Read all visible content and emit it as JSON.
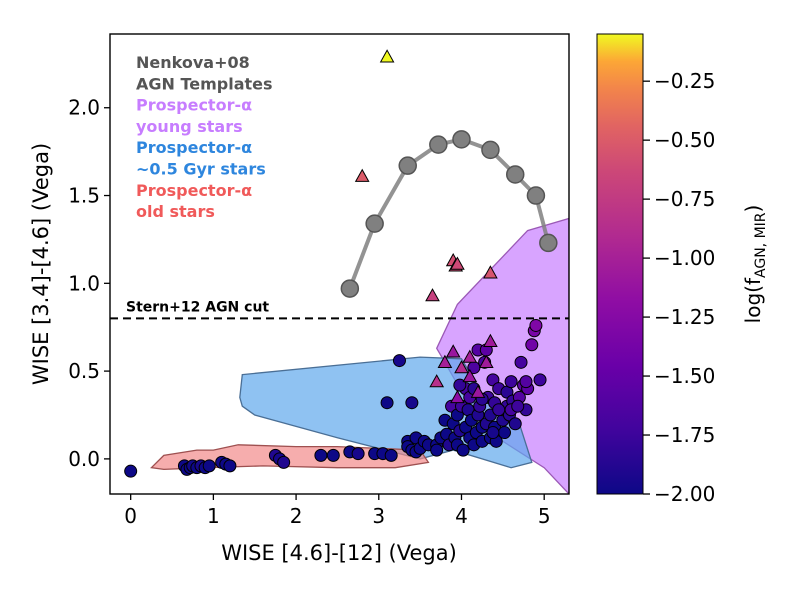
{
  "chart_data": {
    "type": "scatter",
    "xlabel": "WISE [4.6]-[12] (Vega)",
    "ylabel": "WISE [3.4]-[4.6] (Vega)",
    "xlim": [
      -0.25,
      5.3
    ],
    "ylim": [
      -0.2,
      2.42
    ],
    "xticks": [
      0,
      1,
      2,
      3,
      4,
      5
    ],
    "yticks": [
      0.0,
      0.5,
      1.0,
      1.5,
      2.0
    ],
    "xtick_labels": [
      "0",
      "1",
      "2",
      "3",
      "4",
      "5"
    ],
    "ytick_labels": [
      "0.0",
      "0.5",
      "1.0",
      "1.5",
      "2.0"
    ],
    "legend_lines": [
      {
        "text": "Nenkova+08",
        "color": "#555555"
      },
      {
        "text": "AGN Templates",
        "color": "#555555"
      },
      {
        "text": "Prospector-α",
        "color": "#c77dff"
      },
      {
        "text": "young stars",
        "color": "#c77dff"
      },
      {
        "text": "Prospector-α",
        "color": "#2e86de"
      },
      {
        "text": "~0.5 Gyr stars",
        "color": "#2e86de"
      },
      {
        "text": "Prospector-α",
        "color": "#f05a5a"
      },
      {
        "text": "old stars",
        "color": "#f05a5a"
      }
    ],
    "stern_cut": {
      "y": 0.8,
      "label": "Stern+12 AGN cut"
    },
    "colorbar": {
      "label": "log(f",
      "label_sub": "AGN, MIR",
      "label_end": ")",
      "range": [
        -2.0,
        -0.05
      ],
      "ticks": [
        -0.25,
        -0.5,
        -0.75,
        -1.0,
        -1.25,
        -1.5,
        -1.75,
        -2.0
      ],
      "tick_labels": [
        "−0.25",
        "−0.50",
        "−0.75",
        "−1.00",
        "−1.25",
        "−1.50",
        "−1.75",
        "−2.00"
      ]
    },
    "agn_templates": {
      "color": "#808080",
      "points": [
        [
          2.65,
          0.97
        ],
        [
          2.95,
          1.34
        ],
        [
          3.35,
          1.67
        ],
        [
          3.72,
          1.79
        ],
        [
          4.0,
          1.82
        ],
        [
          4.35,
          1.76
        ],
        [
          4.65,
          1.62
        ],
        [
          4.9,
          1.5
        ],
        [
          5.05,
          1.23
        ]
      ]
    },
    "regions": [
      {
        "name": "young stars",
        "fill": "#c77dff",
        "edge": "#9b59b6",
        "points": [
          [
            3.7,
            0.63
          ],
          [
            3.95,
            0.88
          ],
          [
            4.8,
            1.3
          ],
          [
            5.3,
            1.37
          ],
          [
            5.3,
            -0.2
          ],
          [
            5.0,
            -0.05
          ],
          [
            4.5,
            0.1
          ],
          [
            4.1,
            0.3
          ],
          [
            3.8,
            0.55
          ]
        ]
      },
      {
        "name": "~0.5 Gyr stars",
        "fill": "#5fa8ed",
        "edge": "#4a6f96",
        "points": [
          [
            1.35,
            0.48
          ],
          [
            3.5,
            0.58
          ],
          [
            4.0,
            0.57
          ],
          [
            4.25,
            0.37
          ],
          [
            4.7,
            0.2
          ],
          [
            4.85,
            -0.02
          ],
          [
            4.6,
            -0.05
          ],
          [
            3.9,
            0.05
          ],
          [
            3.5,
            0.0
          ],
          [
            2.5,
            0.12
          ],
          [
            1.5,
            0.25
          ],
          [
            1.35,
            0.3
          ],
          [
            1.32,
            0.35
          ]
        ]
      },
      {
        "name": "old stars",
        "fill": "#f28a8a",
        "edge": "#9e5050",
        "points": [
          [
            0.25,
            -0.05
          ],
          [
            0.4,
            0.02
          ],
          [
            0.8,
            0.05
          ],
          [
            1.0,
            0.05
          ],
          [
            1.3,
            0.08
          ],
          [
            2.0,
            0.07
          ],
          [
            2.5,
            0.07
          ],
          [
            3.5,
            0.05
          ],
          [
            3.6,
            -0.02
          ],
          [
            3.2,
            -0.05
          ],
          [
            2.5,
            -0.05
          ],
          [
            1.6,
            -0.04
          ],
          [
            0.9,
            -0.05
          ],
          [
            0.4,
            -0.06
          ]
        ]
      }
    ],
    "circles": [
      [
        0.0,
        -0.07,
        -2.0
      ],
      [
        0.65,
        -0.04,
        -2.0
      ],
      [
        0.68,
        -0.06,
        -2.0
      ],
      [
        0.72,
        -0.05,
        -2.0
      ],
      [
        0.75,
        -0.04,
        -1.98
      ],
      [
        0.8,
        -0.05,
        -2.0
      ],
      [
        0.85,
        -0.04,
        -1.95
      ],
      [
        0.9,
        -0.05,
        -2.0
      ],
      [
        0.95,
        -0.04,
        -2.0
      ],
      [
        1.1,
        -0.02,
        -1.97
      ],
      [
        1.15,
        -0.03,
        -2.0
      ],
      [
        1.2,
        -0.04,
        -2.0
      ],
      [
        1.75,
        0.02,
        -1.9
      ],
      [
        1.8,
        0.0,
        -1.95
      ],
      [
        1.85,
        -0.02,
        -1.9
      ],
      [
        2.3,
        0.02,
        -2.0
      ],
      [
        2.45,
        0.02,
        -2.0
      ],
      [
        2.65,
        0.04,
        -2.0
      ],
      [
        2.75,
        0.03,
        -1.95
      ],
      [
        2.95,
        0.03,
        -2.0
      ],
      [
        3.05,
        0.03,
        -2.0
      ],
      [
        3.15,
        0.02,
        -2.0
      ],
      [
        3.1,
        0.32,
        -2.0
      ],
      [
        3.25,
        0.56,
        -1.95
      ],
      [
        3.35,
        0.1,
        -2.0
      ],
      [
        3.35,
        0.07,
        -2.0
      ],
      [
        3.4,
        0.05,
        -2.0
      ],
      [
        3.45,
        0.12,
        -2.0
      ],
      [
        3.45,
        0.04,
        -2.0
      ],
      [
        3.5,
        0.06,
        -2.0
      ],
      [
        3.55,
        0.1,
        -2.0
      ],
      [
        3.6,
        0.08,
        -2.0
      ],
      [
        3.4,
        0.32,
        -1.95
      ],
      [
        3.7,
        0.08,
        -2.0
      ],
      [
        3.7,
        0.05,
        -2.0
      ],
      [
        3.75,
        0.12,
        -2.0
      ],
      [
        3.8,
        0.22,
        -2.0
      ],
      [
        3.82,
        0.14,
        -2.0
      ],
      [
        3.85,
        0.08,
        -1.9
      ],
      [
        3.88,
        0.3,
        -1.7
      ],
      [
        3.9,
        0.2,
        -2.0
      ],
      [
        3.92,
        0.12,
        -2.0
      ],
      [
        3.95,
        0.25,
        -2.0
      ],
      [
        3.95,
        0.08,
        -2.0
      ],
      [
        3.98,
        0.16,
        -1.9
      ],
      [
        4.0,
        0.3,
        -1.75
      ],
      [
        4.02,
        0.05,
        -2.0
      ],
      [
        4.05,
        0.18,
        -2.0
      ],
      [
        4.05,
        0.4,
        -1.7
      ],
      [
        4.08,
        0.28,
        -1.9
      ],
      [
        4.1,
        0.12,
        -2.0
      ],
      [
        4.1,
        0.35,
        -1.7
      ],
      [
        4.12,
        0.22,
        -2.0
      ],
      [
        4.15,
        0.08,
        -2.0
      ],
      [
        4.15,
        0.52,
        -1.65
      ],
      [
        4.18,
        0.15,
        -2.0
      ],
      [
        4.2,
        0.25,
        -1.9
      ],
      [
        4.2,
        0.62,
        -1.6
      ],
      [
        4.22,
        0.3,
        -1.8
      ],
      [
        4.25,
        0.1,
        -2.0
      ],
      [
        4.25,
        0.18,
        -2.0
      ],
      [
        4.28,
        0.55,
        -1.7
      ],
      [
        4.3,
        0.2,
        -1.9
      ],
      [
        4.3,
        0.62,
        -1.55
      ],
      [
        4.32,
        0.35,
        -1.75
      ],
      [
        4.35,
        0.12,
        -2.0
      ],
      [
        4.35,
        0.25,
        -1.9
      ],
      [
        4.38,
        0.45,
        -1.7
      ],
      [
        4.4,
        0.18,
        -2.0
      ],
      [
        4.4,
        0.32,
        -1.8
      ],
      [
        4.42,
        0.1,
        -2.0
      ],
      [
        4.45,
        0.4,
        -1.75
      ],
      [
        4.5,
        0.22,
        -1.9
      ],
      [
        4.5,
        0.28,
        -1.85
      ],
      [
        4.52,
        0.15,
        -2.0
      ],
      [
        4.55,
        0.3,
        -1.8
      ],
      [
        4.55,
        0.38,
        -1.85
      ],
      [
        4.58,
        0.25,
        -1.85
      ],
      [
        4.6,
        0.44,
        -1.75
      ],
      [
        4.62,
        0.33,
        -1.8
      ],
      [
        4.65,
        0.2,
        -1.9
      ],
      [
        4.7,
        0.35,
        -1.6
      ],
      [
        4.72,
        0.55,
        -1.7
      ],
      [
        4.75,
        0.42,
        -1.55
      ],
      [
        4.78,
        0.28,
        -1.8
      ],
      [
        4.8,
        0.4,
        -1.55
      ],
      [
        4.85,
        0.65,
        -1.4
      ],
      [
        4.88,
        0.73,
        -1.35
      ],
      [
        4.9,
        0.76,
        -1.3
      ],
      [
        4.95,
        0.45,
        -1.75
      ],
      [
        4.45,
        0.28,
        -1.8
      ],
      [
        4.6,
        0.28,
        -1.7
      ],
      [
        4.68,
        0.3,
        -1.75
      ],
      [
        4.25,
        0.34,
        -1.85
      ],
      [
        4.15,
        0.4,
        -1.85
      ],
      [
        3.98,
        0.42,
        -1.8
      ],
      [
        4.38,
        0.15,
        -1.95
      ],
      [
        4.78,
        0.44,
        -1.6
      ]
    ],
    "triangles": [
      [
        3.1,
        2.29,
        -0.05
      ],
      [
        2.8,
        1.61,
        -0.5
      ],
      [
        3.9,
        1.13,
        -0.58
      ],
      [
        3.93,
        1.1,
        -0.6
      ],
      [
        3.95,
        1.11,
        -0.62
      ],
      [
        4.35,
        1.06,
        -0.55
      ],
      [
        3.65,
        0.93,
        -0.7
      ],
      [
        4.35,
        0.67,
        -1.05
      ],
      [
        3.9,
        0.61,
        -1.1
      ],
      [
        4.1,
        0.58,
        -1.0
      ],
      [
        4.3,
        0.55,
        -1.05
      ],
      [
        3.7,
        0.44,
        -0.85
      ],
      [
        4.0,
        0.52,
        -0.9
      ],
      [
        4.1,
        0.47,
        -1.1
      ],
      [
        3.95,
        0.35,
        -1.2
      ],
      [
        4.2,
        0.38,
        -1.1
      ],
      [
        3.8,
        0.55,
        -1.0
      ]
    ]
  }
}
